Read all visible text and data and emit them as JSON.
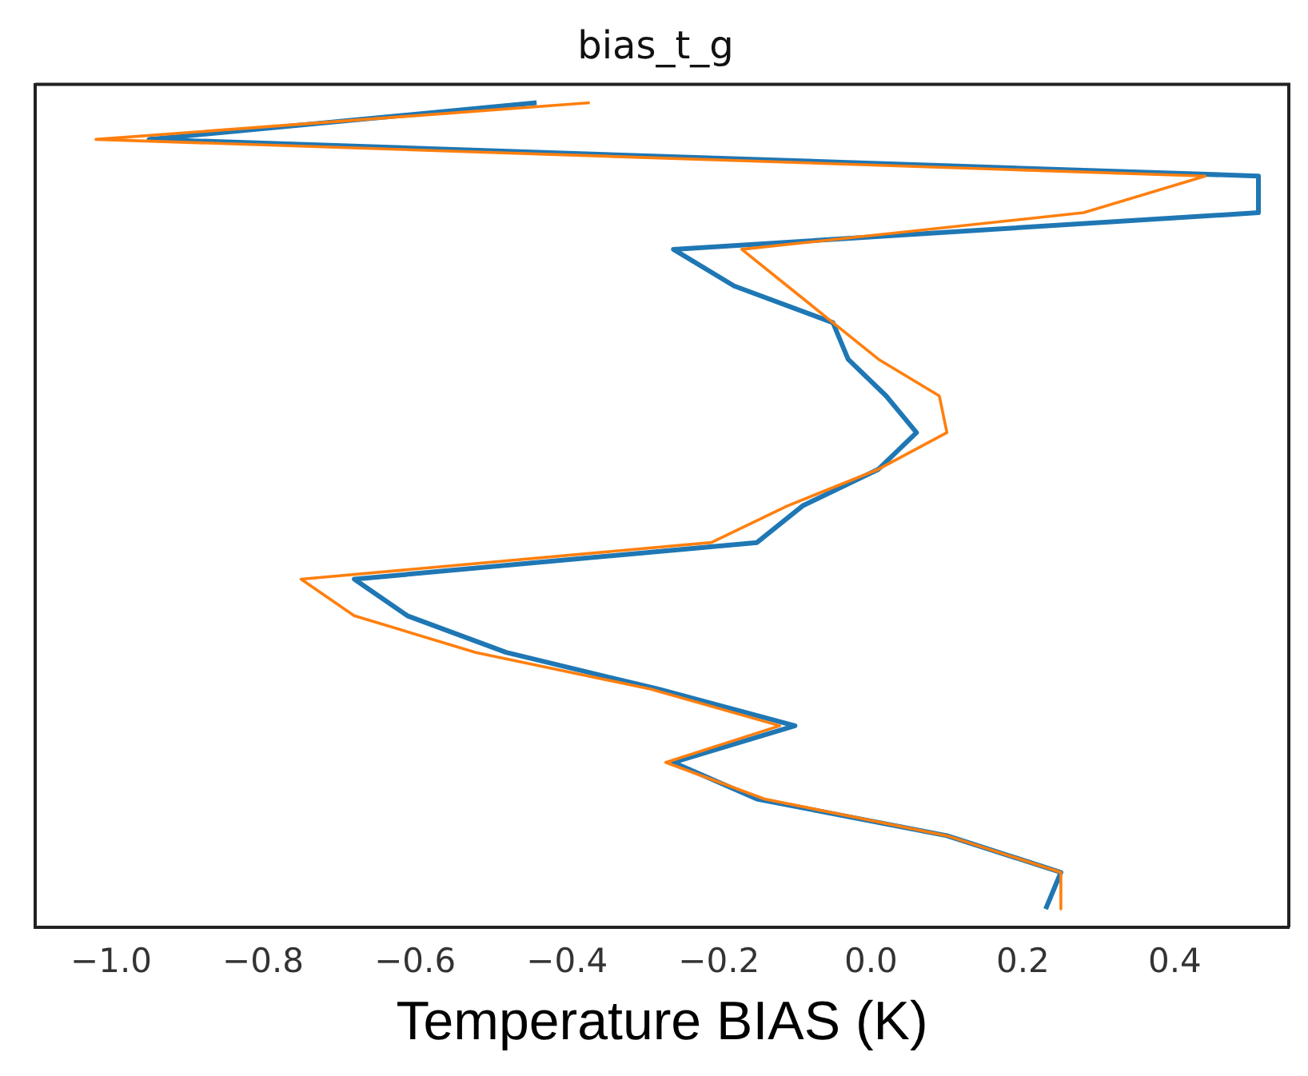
{
  "chart_data": {
    "type": "line",
    "orientation": "horizontal",
    "title": "bias_t_g",
    "xlabel": "Temperature BIAS (K)",
    "categories": [
      null,
      null,
      null,
      null,
      null,
      null,
      null,
      null,
      null,
      null,
      null,
      null,
      null,
      null,
      null,
      null,
      null,
      null,
      null,
      null,
      null,
      null,
      null
    ],
    "series": [
      {
        "color": "#1f77b4",
        "values": [
          -0.44,
          -0.95,
          0.51,
          0.51,
          -0.26,
          -0.18,
          -0.05,
          -0.03,
          0.02,
          0.06,
          0.01,
          -0.09,
          -0.15,
          -0.68,
          -0.61,
          -0.48,
          -0.28,
          -0.1,
          -0.26,
          -0.15,
          0.1,
          0.25,
          0.23
        ]
      },
      {
        "color": "#ff7f0e",
        "values": [
          -0.37,
          -1.02,
          0.44,
          0.28,
          -0.17,
          -0.11,
          -0.05,
          0.01,
          0.09,
          0.1,
          0.01,
          -0.11,
          -0.21,
          -0.75,
          -0.68,
          -0.52,
          -0.29,
          -0.12,
          -0.27,
          -0.14,
          0.1,
          0.25,
          0.25
        ]
      }
    ],
    "xlim": [
      -1.1,
      0.55
    ],
    "xticks": [
      {
        "value": -1,
        "label": "−1.0"
      },
      {
        "value": -0.8,
        "label": "−0.8"
      },
      {
        "value": -0.6,
        "label": "−0.6"
      },
      {
        "value": -0.4,
        "label": "−0.4"
      },
      {
        "value": -0.2,
        "label": "−0.2"
      },
      {
        "value": 0,
        "label": "0.0"
      },
      {
        "value": 0.2,
        "label": "0.2"
      },
      {
        "value": 0.4,
        "label": "0.4"
      }
    ],
    "tick_labels": "x",
    "grid": false,
    "legend": false,
    "marker": "none",
    "line_style": "solid"
  }
}
